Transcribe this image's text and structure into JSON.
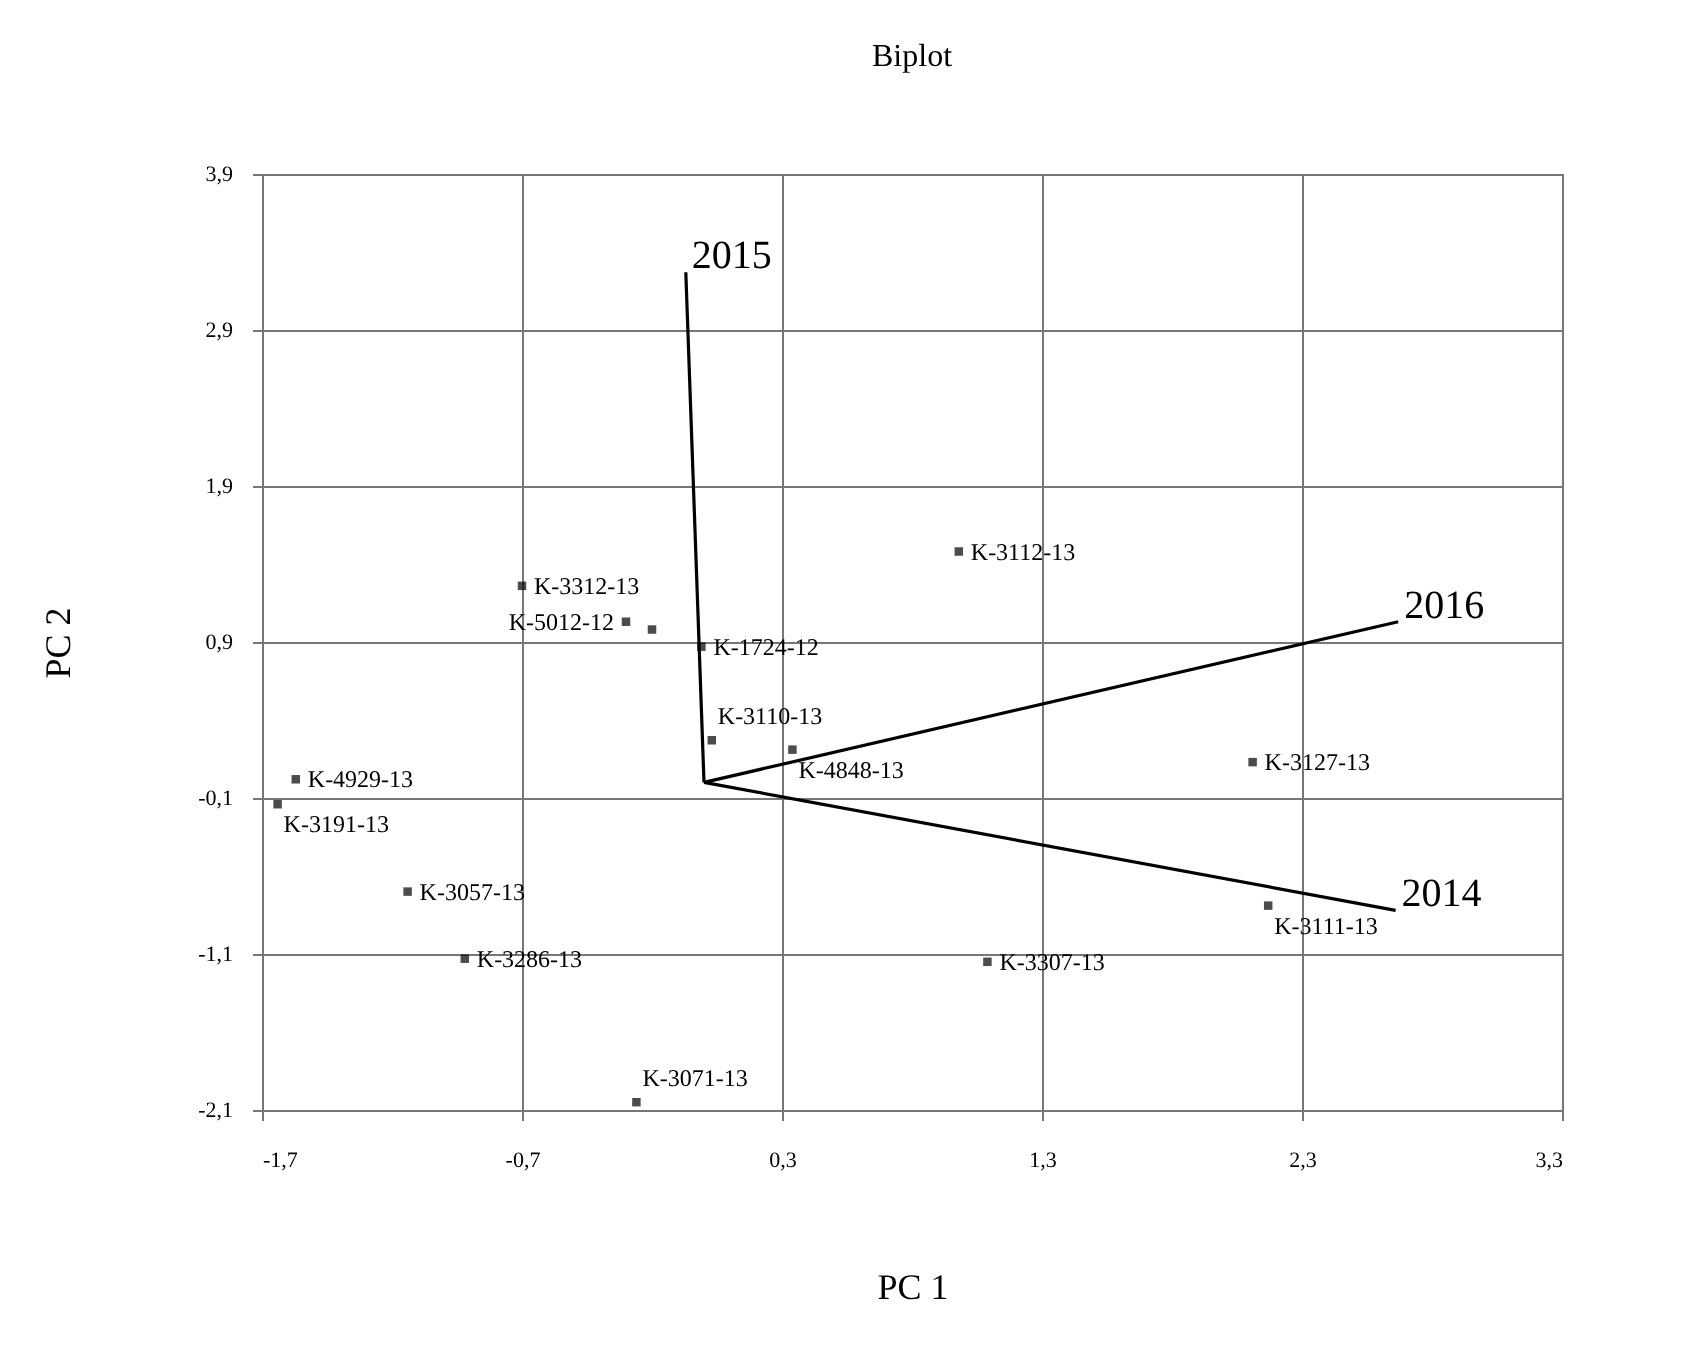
{
  "chart_data": {
    "type": "scatter",
    "title": "Biplot",
    "xlabel": "PC 1",
    "ylabel": "PC 2",
    "grid": true,
    "xlim": [
      -1.7,
      3.3
    ],
    "ylim": [
      -2.1,
      3.9
    ],
    "xticks": [
      {
        "value": -1.7,
        "label": "-1,7"
      },
      {
        "value": -0.7,
        "label": "-0,7"
      },
      {
        "value": 0.3,
        "label": "0,3"
      },
      {
        "value": 1.3,
        "label": "1,3"
      },
      {
        "value": 2.3,
        "label": "2,3"
      },
      {
        "value": 3.3,
        "label": "3,3"
      }
    ],
    "yticks": [
      {
        "value": -2.1,
        "label": "-2,1"
      },
      {
        "value": -1.1,
        "label": "-1,1"
      },
      {
        "value": -0.1,
        "label": "-0,1"
      },
      {
        "value": 0.9,
        "label": "0,9"
      },
      {
        "value": 1.9,
        "label": "1,9"
      },
      {
        "value": 2.9,
        "label": "2,9"
      },
      {
        "value": 3.9,
        "label": "3,9"
      }
    ],
    "series": [
      {
        "type": "scatter",
        "marker": "square",
        "color": "#000000",
        "x": [
          -0.7,
          -0.3,
          -0.2,
          -0.01,
          0.03,
          0.34,
          0.98,
          2.11,
          2.17,
          1.09,
          -0.26,
          -0.92,
          -1.14,
          -1.57,
          -1.64
        ],
        "values": [
          1.26,
          1.03,
          0.98,
          0.87,
          0.27,
          0.21,
          1.48,
          0.13,
          -0.79,
          -1.15,
          -2.05,
          -1.13,
          -0.7,
          0.02,
          -0.14
        ],
        "value_labels": [
          "K-3312-13",
          "K-5012-12",
          null,
          "K-1724-12",
          "K-3110-13",
          "K-4848-13",
          "K-3112-13",
          "K-3127-13",
          "K-3111-13",
          "K-3307-13",
          "K-3071-13",
          "K-3286-13",
          "K-3057-13",
          "K-4929-13",
          "K-3191-13"
        ]
      },
      {
        "type": "line",
        "name": "2014",
        "color": "#000000",
        "x": [
          0,
          2.66
        ],
        "values": [
          0,
          -0.82
        ]
      },
      {
        "type": "line",
        "name": "2015",
        "color": "#000000",
        "x": [
          0,
          -0.07
        ],
        "values": [
          0,
          3.27
        ]
      },
      {
        "type": "line",
        "name": "2016",
        "color": "#000000",
        "x": [
          0,
          2.67
        ],
        "values": [
          0,
          1.03
        ]
      }
    ]
  }
}
